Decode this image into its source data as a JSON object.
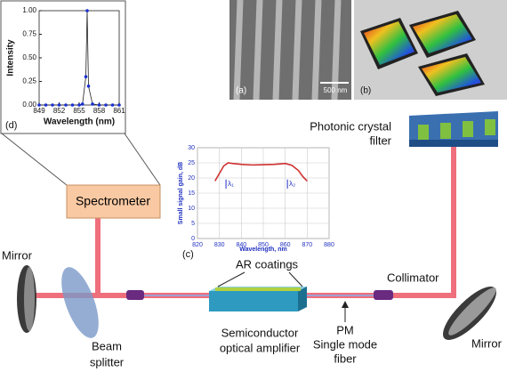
{
  "labels": {
    "mirror_left": "Mirror",
    "beam_splitter": [
      "Beam",
      "splitter"
    ],
    "spectrometer": "Spectrometer",
    "ar_coatings": "AR coatings",
    "soa": [
      "Semiconductor",
      "optical amplifier"
    ],
    "fiber": [
      "PM",
      "Single mode",
      "fiber"
    ],
    "collimator": "Collimator",
    "mirror_right": "Mirror",
    "filter": [
      "Photonic crystal",
      "filter"
    ],
    "panel_a": "(a)",
    "panel_b": "(b)",
    "scale_bar": "500 nm"
  },
  "insets": {
    "d": {
      "type": "line",
      "panel": "(d)",
      "xlabel": "Wavelength (nm)",
      "ylabel": "Intensity",
      "x": [
        849,
        850,
        851,
        852,
        853,
        854,
        855,
        855.5,
        856,
        856.2,
        856.4,
        857,
        858,
        859,
        860,
        861
      ],
      "values": [
        0,
        0,
        0,
        0,
        0,
        0,
        0,
        0.01,
        0.3,
        1.0,
        0.2,
        0.01,
        0,
        0,
        0,
        0
      ],
      "color": "#1a2fd0",
      "xlim": [
        849,
        861
      ],
      "ylim": [
        0,
        1.0
      ],
      "xticks": [
        849,
        852,
        855,
        858,
        861
      ],
      "yticks": [
        {
          "value": 0,
          "label": "0.00"
        },
        {
          "value": 0.25,
          "label": "0.25"
        },
        {
          "value": 0.5,
          "label": "0.50"
        },
        {
          "value": 0.75,
          "label": "0.75"
        },
        {
          "value": 1.0,
          "label": "1.00"
        }
      ],
      "grid": false
    },
    "c": {
      "type": "line",
      "panel": "(c)",
      "xlabel": "Wavelength, nm",
      "ylabel": "Small signal gain, dB",
      "x": [
        828,
        830,
        832,
        834,
        836,
        840,
        845,
        850,
        855,
        860,
        863,
        866,
        868,
        870
      ],
      "values": [
        19,
        21.5,
        24,
        25,
        24.8,
        24.5,
        24.3,
        24.4,
        24.5,
        24.8,
        24.2,
        22.5,
        20.5,
        19
      ],
      "color": "#d03030",
      "xlim": [
        820,
        880
      ],
      "ylim": [
        0,
        30
      ],
      "xticks": [
        820,
        830,
        840,
        850,
        860,
        870,
        880
      ],
      "yticks": [
        0,
        5,
        10,
        15,
        20,
        25,
        30
      ],
      "grid": true,
      "annotations": [
        {
          "text": "λ₁",
          "x": 833
        },
        {
          "text": "λ₂",
          "x": 861
        }
      ]
    }
  }
}
